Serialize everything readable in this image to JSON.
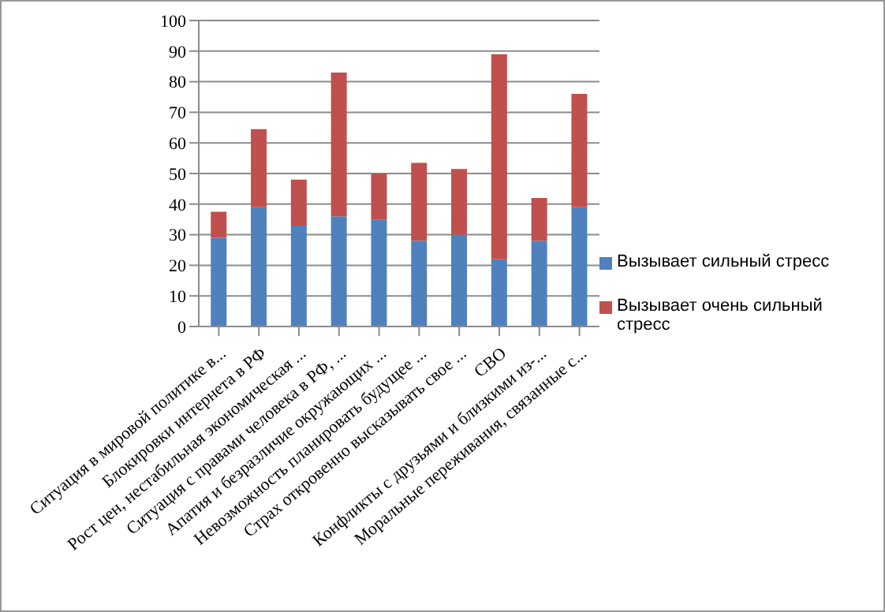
{
  "chart_data": {
    "type": "bar",
    "stacked": true,
    "categories": [
      "Ситуация в мировой политике в...",
      "Блокировки интернета в РФ",
      "Рост цен, нестабильная экономическая ...",
      "Ситуация с правами человека в РФ, ...",
      "Апатия и безразличие окружающих ...",
      "Невозможность планировать будущее ...",
      "Страх откровенно высказывать свое ...",
      "СВО",
      "Конфликты с друзьями и близкими из-...",
      "Моральные переживания, связанные с..."
    ],
    "series": [
      {
        "name": "Вызывает сильный стресс",
        "color": "#4f81bd",
        "values": [
          29,
          39,
          33,
          36,
          35,
          28,
          30,
          22,
          28,
          39
        ]
      },
      {
        "name": "Вызывает очень сильный стресс",
        "color": "#c0504d",
        "values": [
          8.5,
          25.5,
          15,
          47,
          15,
          25.5,
          21.5,
          67,
          14,
          37
        ]
      }
    ],
    "ylim": [
      0,
      100
    ],
    "yticks": [
      0,
      10,
      20,
      30,
      40,
      50,
      60,
      70,
      80,
      90,
      100
    ],
    "grid": "y",
    "legend": "right"
  }
}
